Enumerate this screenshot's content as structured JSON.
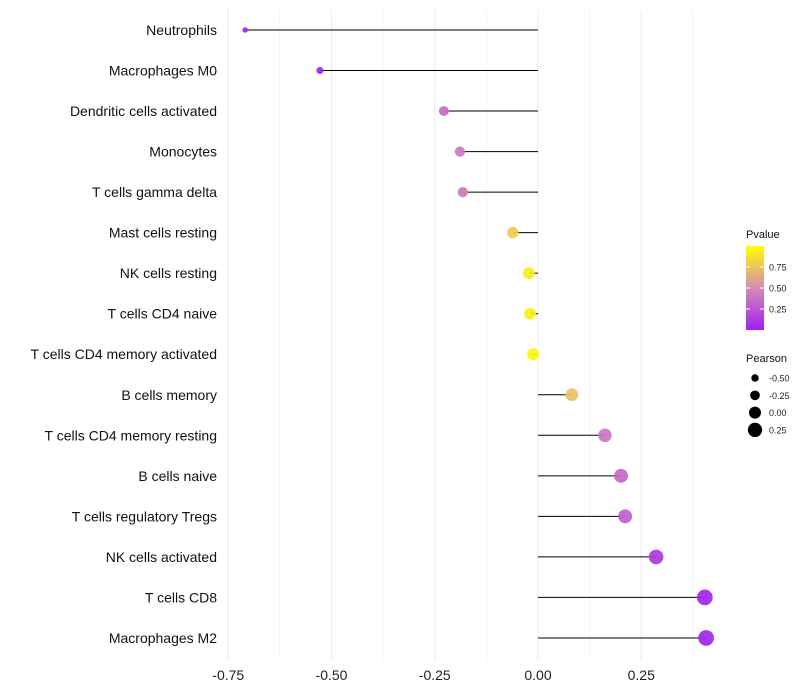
{
  "chart_data": {
    "type": "lollipop",
    "title": "",
    "xlabel": "",
    "ylabel": "",
    "xlim": [
      -0.75,
      0.43
    ],
    "xticks": [
      "-0.75",
      "-0.50",
      "-0.25",
      "0.00",
      "0.25"
    ],
    "xtick_values": [
      -0.75,
      -0.5,
      -0.25,
      0,
      0.25
    ],
    "grid": true,
    "categories": [
      "Neutrophils",
      "Macrophages M0",
      "Dendritic cells activated",
      "Monocytes",
      "T cells gamma delta",
      "Mast cells resting",
      "NK cells resting",
      "T cells CD4 naive",
      "T cells CD4 memory activated",
      "B cells memory",
      "T cells CD4 memory resting",
      "B cells naive",
      "T cells regulatory  Tregs",
      "NK cells activated",
      "T cells CD8",
      "Macrophages M2"
    ],
    "pearson": [
      -0.709,
      -0.528,
      -0.228,
      -0.189,
      -0.182,
      -0.061,
      -0.022,
      -0.019,
      -0.012,
      0.082,
      0.162,
      0.201,
      0.211,
      0.286,
      0.404,
      0.407
    ],
    "pvalue": [
      0.02,
      0.03,
      0.35,
      0.42,
      0.43,
      0.78,
      0.93,
      0.94,
      0.97,
      0.74,
      0.4,
      0.33,
      0.3,
      0.12,
      0.03,
      0.03
    ],
    "legend": {
      "color_title": "Pvalue",
      "color_ticks": [
        "0.75",
        "0.50",
        "0.25"
      ],
      "color_tick_values": [
        0.75,
        0.5,
        0.25
      ],
      "size_title": "Pearson",
      "size_ticks": [
        "-0.50",
        "-0.25",
        "0.00",
        "0.25"
      ],
      "size_tick_values": [
        -0.5,
        -0.25,
        0,
        0.25
      ],
      "placement": "right"
    },
    "colors": {
      "low": "#a020f0",
      "mid": "#d68bb5",
      "high": "#ffff00"
    }
  }
}
